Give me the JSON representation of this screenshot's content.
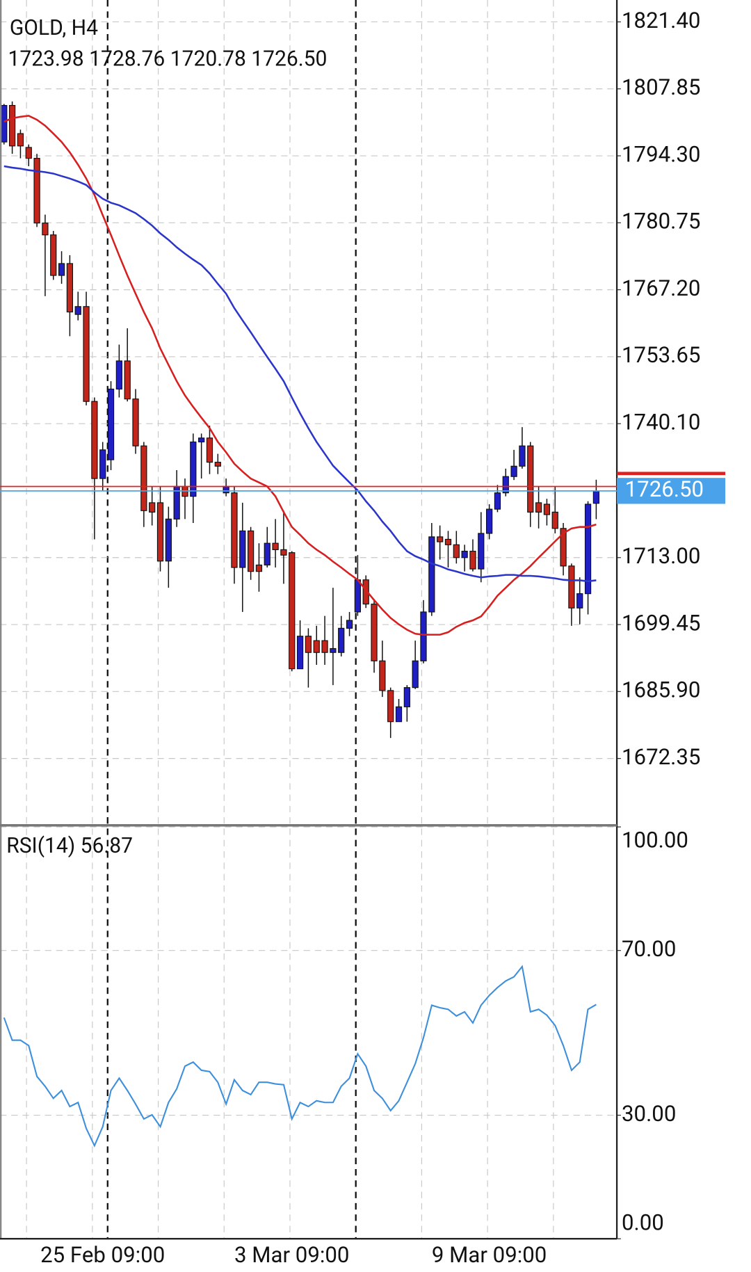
{
  "chart_data": [
    {
      "type": "candlestick",
      "title": "GOLD, H4",
      "subtitle": "1723.98 1728.76 1720.78 1726.50",
      "categories": [
        null,
        null,
        null,
        null,
        null,
        null,
        null,
        null,
        null,
        null,
        null,
        null,
        "25 Feb 09:00",
        null,
        null,
        null,
        null,
        null,
        null,
        null,
        null,
        null,
        null,
        null,
        null,
        null,
        null,
        null,
        null,
        null,
        null,
        null,
        null,
        null,
        null,
        "3 Mar 09:00",
        null,
        null,
        null,
        null,
        null,
        null,
        null,
        null,
        null,
        null,
        null,
        null,
        null,
        null,
        null,
        null,
        null,
        null,
        null,
        null,
        null,
        null,
        null,
        "9 Mar 09:00",
        null,
        null,
        null,
        null,
        null,
        null,
        null,
        null,
        null,
        null,
        null,
        null,
        null
      ],
      "open": [
        1797.1,
        1804.5,
        1798.8,
        1796.0,
        1793.8,
        1780.7,
        1778.3,
        1770.1,
        1772.5,
        1762.2,
        1763.8,
        1744.6,
        1729.0,
        1732.8,
        1747.1,
        1752.8,
        1745.1,
        1735.6,
        1724.1,
        1724.1,
        1712.3,
        1720.8,
        1727.4,
        1725.4,
        1736.4,
        1737.2,
        1732.3,
        1726.1,
        1726.1,
        1711.0,
        1718.4,
        1711.5,
        1711.5,
        1715.9,
        1714.6,
        1714.0,
        1690.5,
        1697.1,
        1696.2,
        1696.2,
        1693.8,
        1693.8,
        1698.7,
        1702.0,
        1708.5,
        1703.6,
        1692.1,
        1686.1,
        1679.8,
        1682.8,
        1686.7,
        1692.1,
        1702.0,
        1717.2,
        1716.7,
        1715.6,
        1713.0,
        1714.3,
        1710.7,
        1717.9,
        1722.8,
        1726.1,
        1729.4,
        1731.5,
        1735.6,
        1724.1,
        1723.8,
        1722.2,
        1718.9,
        1711.3,
        1702.8,
        1705.7,
        1723.98
      ],
      "high": [
        1804.8,
        1805.3,
        1799.6,
        1796.6,
        1794.7,
        1782.4,
        1779.1,
        1775.0,
        1774.2,
        1766.8,
        1766.8,
        1745.4,
        1736.4,
        1748.7,
        1756.1,
        1759.4,
        1747.1,
        1736.4,
        1727.4,
        1727.4,
        1723.3,
        1730.7,
        1729.0,
        1738.1,
        1738.1,
        1739.7,
        1734.0,
        1729.0,
        1727.4,
        1724.1,
        1719.2,
        1715.9,
        1719.2,
        1720.8,
        1722.5,
        1714.3,
        1700.3,
        1698.7,
        1699.2,
        1701.2,
        1706.9,
        1701.2,
        1702.0,
        1713.5,
        1709.4,
        1704.4,
        1696.2,
        1686.7,
        1684.4,
        1687.2,
        1696.2,
        1704.4,
        1720.0,
        1719.5,
        1718.4,
        1718.4,
        1715.6,
        1716.7,
        1722.2,
        1723.8,
        1727.7,
        1731.0,
        1734.8,
        1739.4,
        1736.4,
        1727.4,
        1724.9,
        1727.4,
        1720.0,
        1711.8,
        1709.0,
        1724.4,
        1728.76
      ],
      "low": [
        1796.6,
        1794.7,
        1793.8,
        1792.2,
        1779.9,
        1765.9,
        1769.2,
        1768.4,
        1757.8,
        1761.0,
        1743.8,
        1716.7,
        1726.6,
        1730.7,
        1745.4,
        1744.6,
        1734.0,
        1719.2,
        1719.5,
        1710.2,
        1706.9,
        1719.2,
        1720.8,
        1720.0,
        1729.0,
        1729.9,
        1729.9,
        1725.4,
        1707.7,
        1702.0,
        1708.5,
        1706.1,
        1711.0,
        1711.0,
        1707.7,
        1690.0,
        1690.5,
        1686.7,
        1691.3,
        1691.3,
        1687.2,
        1693.0,
        1697.1,
        1701.2,
        1702.8,
        1689.7,
        1684.8,
        1676.5,
        1679.8,
        1679.8,
        1686.4,
        1691.6,
        1701.2,
        1712.6,
        1711.0,
        1711.8,
        1710.2,
        1710.2,
        1708.0,
        1716.7,
        1722.2,
        1725.4,
        1728.7,
        1731.0,
        1719.2,
        1718.9,
        1719.5,
        1717.9,
        1709.4,
        1699.2,
        1699.5,
        1701.5,
        1720.78
      ],
      "close": [
        1804.5,
        1796.3,
        1796.3,
        1793.8,
        1780.7,
        1778.3,
        1770.1,
        1772.5,
        1762.7,
        1763.8,
        1744.6,
        1729.0,
        1734.8,
        1747.1,
        1752.8,
        1745.1,
        1735.6,
        1722.5,
        1722.2,
        1712.3,
        1720.8,
        1727.4,
        1725.4,
        1736.4,
        1737.2,
        1732.3,
        1731.5,
        1727.4,
        1711.0,
        1718.4,
        1710.2,
        1710.2,
        1715.9,
        1714.6,
        1713.5,
        1690.5,
        1697.1,
        1693.8,
        1693.8,
        1693.8,
        1694.6,
        1698.7,
        1700.3,
        1708.5,
        1703.6,
        1692.1,
        1686.1,
        1679.8,
        1682.8,
        1686.7,
        1692.1,
        1702.0,
        1717.2,
        1716.2,
        1715.6,
        1713.0,
        1714.3,
        1710.7,
        1717.9,
        1722.8,
        1726.1,
        1729.4,
        1731.5,
        1735.6,
        1722.2,
        1722.2,
        1721.7,
        1718.9,
        1711.3,
        1702.8,
        1705.7,
        1723.8,
        1726.5
      ],
      "up_color": "#1f1fc4",
      "down_color": "#c4261c",
      "lines": [
        {
          "color": "#d61f1f",
          "values": [
            1801.2,
            1801.9,
            1802.2,
            1802.4,
            1801.6,
            1800.4,
            1798.8,
            1797.1,
            1795.0,
            1792.5,
            1789.7,
            1786.4,
            1782.3,
            1778.3,
            1774.1,
            1770.1,
            1766.4,
            1762.7,
            1759.4,
            1755.3,
            1752.0,
            1748.7,
            1745.8,
            1743.5,
            1741.3,
            1739.2,
            1736.4,
            1734.3,
            1732.0,
            1730.4,
            1729.0,
            1728.2,
            1727.4,
            1725.4,
            1722.2,
            1719.2,
            1717.6,
            1715.9,
            1714.6,
            1713.5,
            1712.2,
            1711.0,
            1709.7,
            1708.5,
            1706.4,
            1704.4,
            1702.5,
            1700.8,
            1699.5,
            1698.4,
            1697.6,
            1697.4,
            1697.4,
            1697.4,
            1697.9,
            1699.0,
            1699.8,
            1700.3,
            1701.1,
            1703.1,
            1705.3,
            1706.9,
            1708.5,
            1709.8,
            1711.3,
            1713.0,
            1714.6,
            1716.3,
            1717.9,
            1718.9,
            1719.2,
            1719.2,
            1719.7
          ]
        },
        {
          "color": "#2b35c8",
          "values": [
            1792.2,
            1791.9,
            1791.7,
            1791.4,
            1791.2,
            1791.0,
            1790.7,
            1790.2,
            1789.7,
            1789.1,
            1788.4,
            1786.9,
            1785.6,
            1784.8,
            1784.3,
            1783.5,
            1782.7,
            1781.5,
            1780.2,
            1778.6,
            1777.3,
            1775.8,
            1774.5,
            1773.3,
            1772.2,
            1770.5,
            1768.4,
            1766.4,
            1763.5,
            1761.0,
            1758.6,
            1756.1,
            1753.6,
            1751.2,
            1748.7,
            1745.4,
            1742.2,
            1739.2,
            1736.4,
            1734.0,
            1731.6,
            1729.9,
            1728.2,
            1726.6,
            1724.4,
            1722.5,
            1720.3,
            1718.4,
            1716.2,
            1714.3,
            1713.3,
            1712.6,
            1711.8,
            1711.3,
            1710.6,
            1710.2,
            1709.7,
            1709.3,
            1709.0,
            1709.2,
            1709.3,
            1709.5,
            1709.5,
            1709.3,
            1709.3,
            1709.2,
            1709.0,
            1708.8,
            1708.5,
            1708.4,
            1708.4,
            1708.2,
            1708.4
          ]
        }
      ],
      "ask_line": 1727.4,
      "ask_color": "#e02020",
      "last_price": 1726.5,
      "last_price_label": "1726.50",
      "last_color": "#4aa3ea",
      "ylim": [
        1658.83,
        1825.83
      ],
      "yticks": [
        {
          "value": 1821.4,
          "label": "1821.40"
        },
        1807.85,
        {
          "value": 1794.3,
          "label": "1794.30"
        },
        1780.75,
        {
          "value": 1767.2,
          "label": "1767.20"
        },
        1753.65,
        {
          "value": 1740.1,
          "label": "1740.10"
        },
        {
          "value": 1713,
          "label": "1713.00"
        },
        1699.45,
        {
          "value": 1685.9,
          "label": "1685.90"
        },
        1672.35
      ],
      "grid": true
    },
    {
      "type": "line",
      "title": "RSI(14) 56.87",
      "color": "#3d8fdc",
      "values": [
        53.7,
        48.2,
        48.2,
        46.9,
        39.4,
        37.0,
        34.1,
        36.0,
        32.1,
        33.1,
        26.8,
        22.6,
        27.2,
        36.0,
        39.0,
        36.0,
        32.7,
        29.1,
        30.1,
        27.2,
        33.1,
        36.4,
        41.9,
        42.9,
        40.9,
        40.6,
        38.0,
        32.7,
        38.6,
        36.0,
        35.0,
        38.0,
        38.0,
        37.6,
        37.4,
        29.1,
        33.1,
        32.1,
        33.5,
        33.1,
        33.1,
        37.0,
        39.0,
        44.9,
        41.9,
        36.0,
        34.1,
        31.1,
        33.5,
        38.0,
        42.5,
        48.8,
        56.7,
        56.1,
        55.7,
        54.1,
        55.1,
        52.4,
        56.7,
        59.1,
        61.0,
        62.6,
        63.6,
        66.1,
        55.1,
        55.7,
        54.3,
        51.8,
        46.9,
        40.9,
        42.9,
        55.7,
        56.87
      ],
      "ylim": [
        0,
        100
      ],
      "yticks": [
        {
          "value": 100,
          "label": "100.00"
        },
        {
          "value": 70,
          "label": "70.00"
        },
        {
          "value": 30,
          "label": "30.00"
        },
        {
          "value": 0,
          "label": "0.00"
        }
      ],
      "grid": true
    }
  ]
}
